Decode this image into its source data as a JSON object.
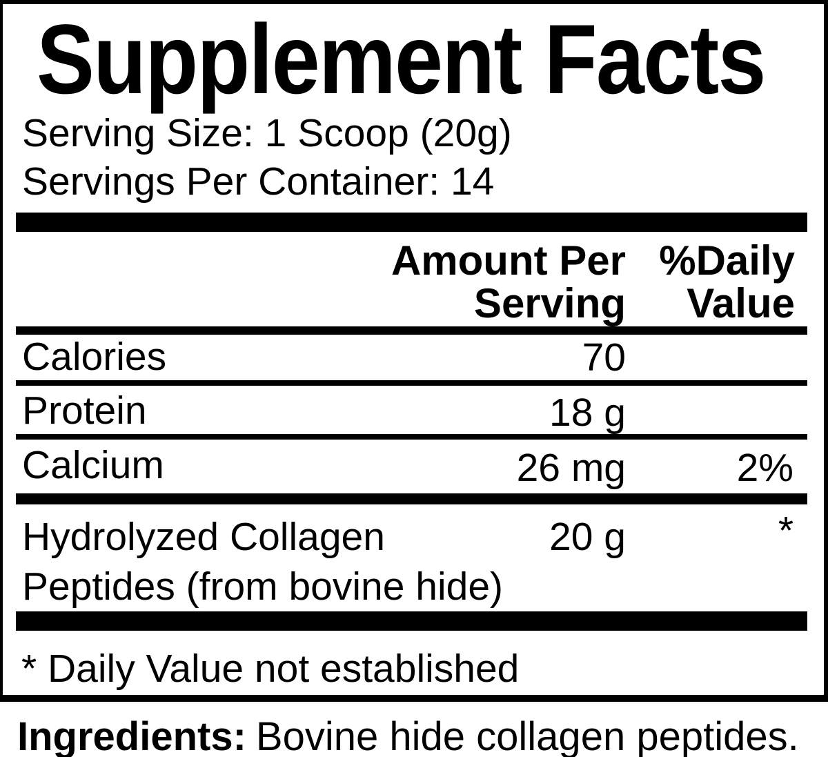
{
  "panel": {
    "title": "Supplement Facts",
    "serving_size": "Serving Size: 1 Scoop (20g)",
    "servings_per_container": "Servings Per Container: 14",
    "columns": {
      "amount_header_line1": "Amount Per",
      "amount_header_line2": "Serving",
      "dv_header_line1": "%Daily",
      "dv_header_line2": "Value"
    },
    "rows": [
      {
        "name": "Calories",
        "amount": "70",
        "daily_value": ""
      },
      {
        "name": "Protein",
        "amount": "18 g",
        "daily_value": ""
      },
      {
        "name": "Calcium",
        "amount": "26 mg",
        "daily_value": "2%"
      },
      {
        "name": "Hydrolyzed Collagen Peptides (from bovine hide)",
        "amount": "20 g",
        "daily_value": "*"
      }
    ],
    "footnote": "* Daily Value not established"
  },
  "ingredients": {
    "label": "Ingredients:",
    "text": "Bovine hide collagen peptides."
  },
  "colors": {
    "ink": "#000000",
    "paper": "#ffffff"
  }
}
